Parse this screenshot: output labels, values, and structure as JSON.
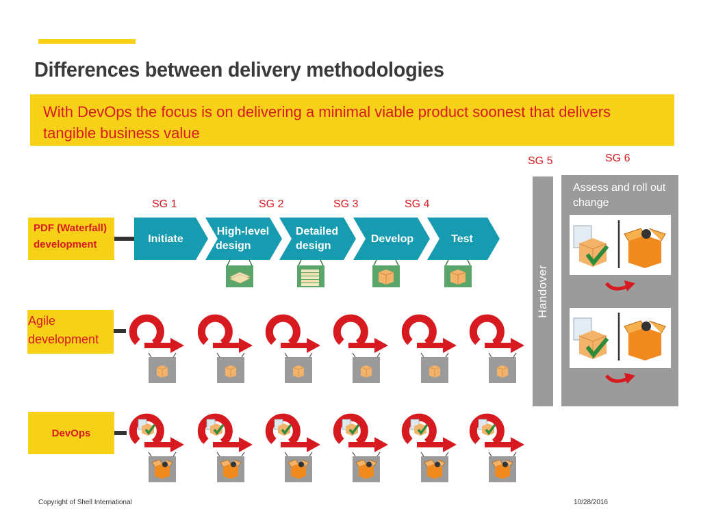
{
  "slide": {
    "title": "Differences between delivery methodologies",
    "banner": "With DevOps the focus is on delivering a minimal viable product soonest that delivers tangible business value"
  },
  "stage_gates": [
    "SG 1",
    "SG 2",
    "SG 3",
    "SG 4",
    "SG 5",
    "SG 6"
  ],
  "rows": {
    "waterfall": "PDF (Waterfall) development",
    "agile": "Agile development",
    "devops": "DevOps"
  },
  "phases": [
    {
      "line1": "Initiate",
      "line2": ""
    },
    {
      "line1": "High-level",
      "line2": "design"
    },
    {
      "line1": "Detailed",
      "line2": "design"
    },
    {
      "line1": "Develop",
      "line2": ""
    },
    {
      "line1": "Test",
      "line2": ""
    }
  ],
  "handover": "Handover",
  "sg6": {
    "caption": "Assess and roll out change"
  },
  "footer": {
    "copyright": "Copyright of Shell International",
    "date": "10/28/2016"
  },
  "colors": {
    "yellow": "#f7d117",
    "red": "#d71920",
    "teal": "#169bb0",
    "grey": "#9b9b9b",
    "green": "#2e8b3a"
  },
  "icons": [
    "paper-stack-icon",
    "box-icon",
    "document-icon",
    "checkmark-icon",
    "cycle-arrow-icon",
    "open-box-icon"
  ]
}
